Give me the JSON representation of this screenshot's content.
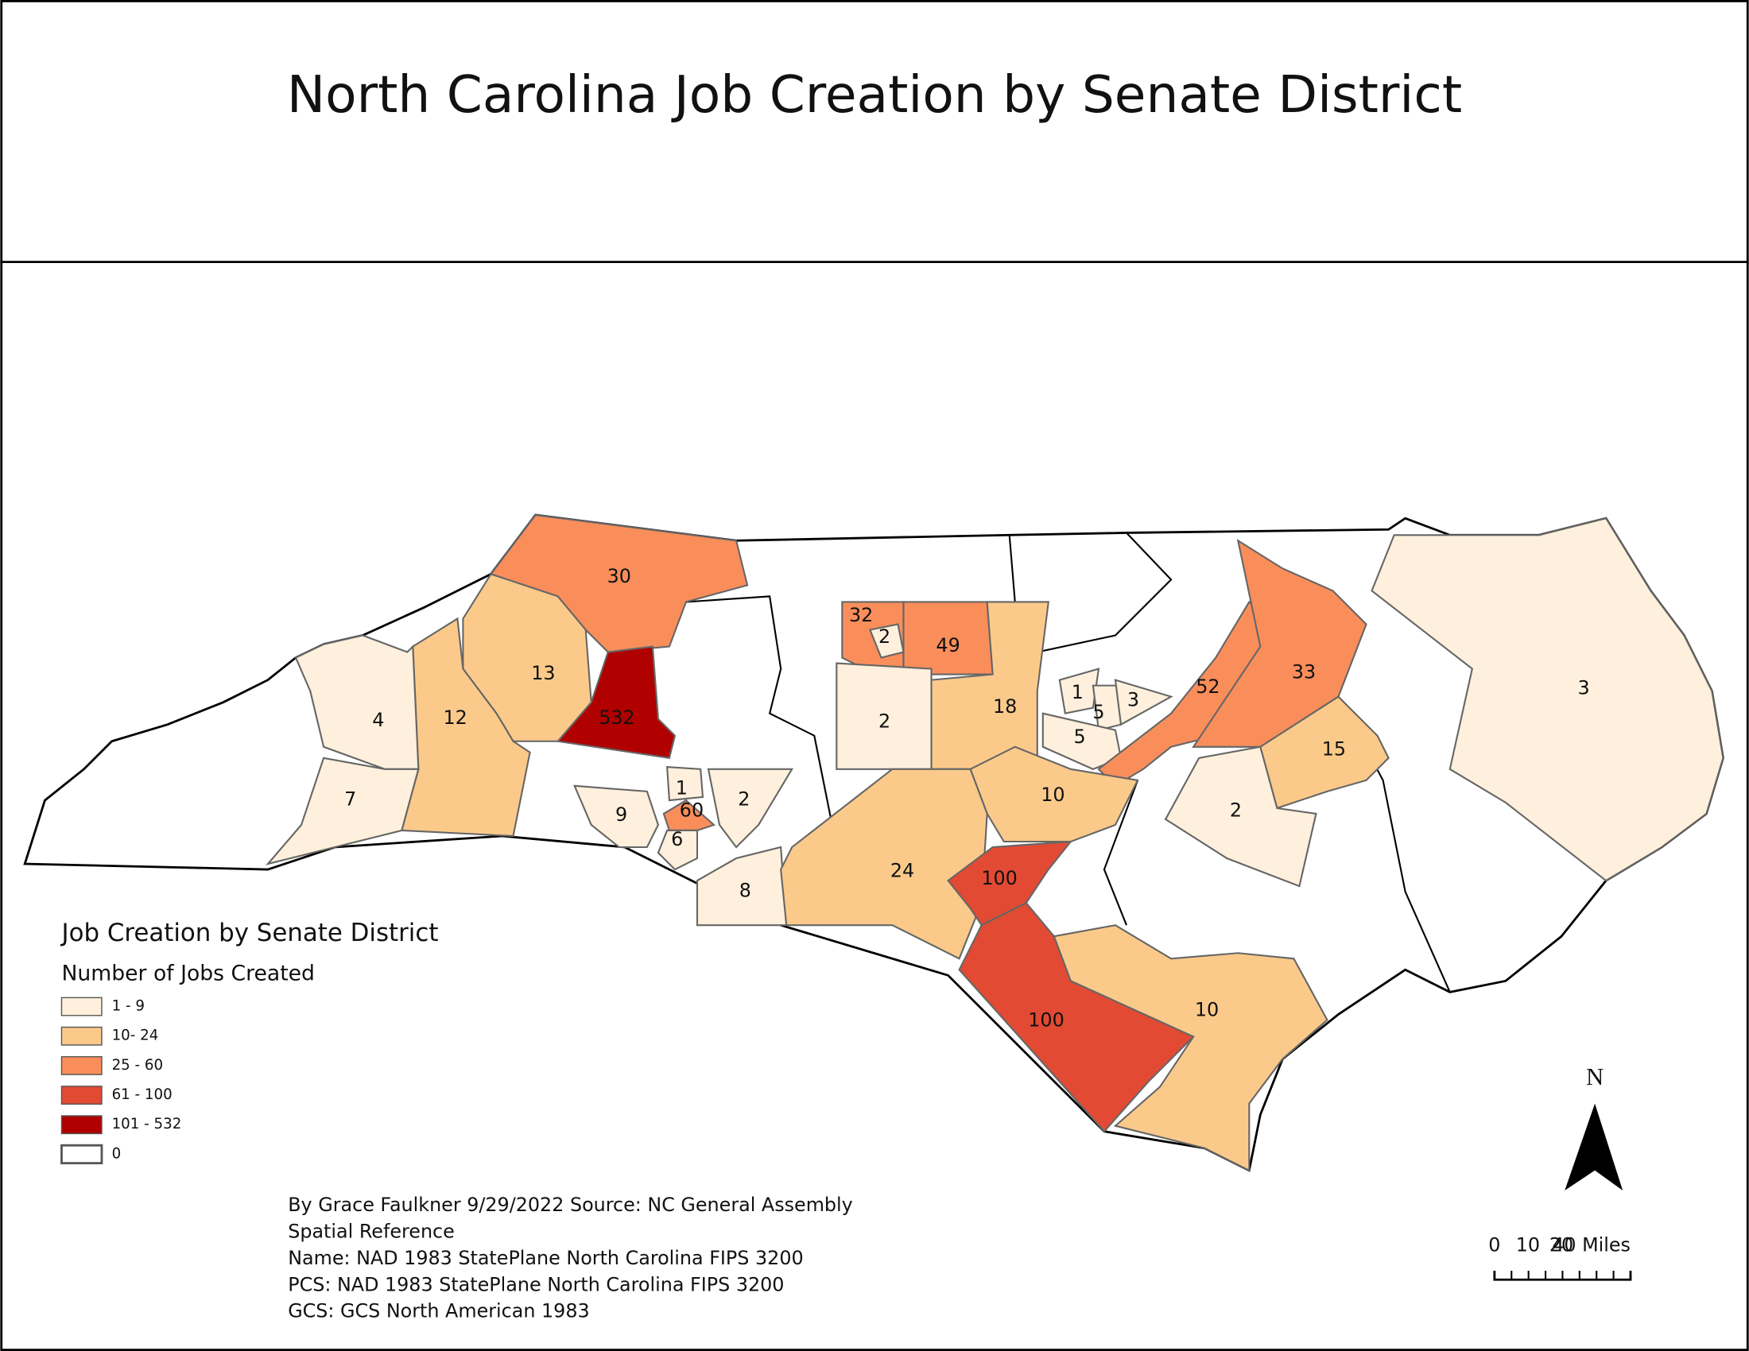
{
  "map_data": {
    "title": "North Carolina Job Creation by Senate District",
    "legend": {
      "title": "Job Creation by Senate District",
      "subtitle": "Number of Jobs Created",
      "classes": [
        {
          "label": "1 - 9",
          "min": 1,
          "max": 9,
          "color": "#fef0dc"
        },
        {
          "label": "10- 24",
          "min": 10,
          "max": 24,
          "color": "#fbca8a"
        },
        {
          "label": "25 - 60",
          "min": 25,
          "max": 60,
          "color": "#f98e5b"
        },
        {
          "label": "61 - 100",
          "min": 61,
          "max": 100,
          "color": "#e24a33"
        },
        {
          "label": "101 - 532",
          "min": 101,
          "max": 532,
          "color": "#b00000"
        },
        {
          "label": "0",
          "min": 0,
          "max": 0,
          "color": "#ffffff"
        }
      ]
    },
    "districts": [
      30,
      532,
      13,
      12,
      4,
      7,
      9,
      1,
      60,
      6,
      2,
      8,
      32,
      2,
      49,
      2,
      18,
      1,
      5,
      3,
      5,
      52,
      33,
      3,
      15,
      2,
      10,
      24,
      100,
      100,
      10
    ],
    "credits": [
      "By Grace Faulkner  9/29/2022 Source: NC General Assembly",
      "Spatial Reference",
      "Name: NAD 1983 StatePlane North Carolina FIPS 3200",
      "PCS: NAD 1983 StatePlane North Carolina FIPS 3200",
      "GCS: GCS North American 1983"
    ],
    "north_label": "N",
    "scale_labels": [
      "0",
      "10",
      "20",
      "40 Miles"
    ]
  }
}
